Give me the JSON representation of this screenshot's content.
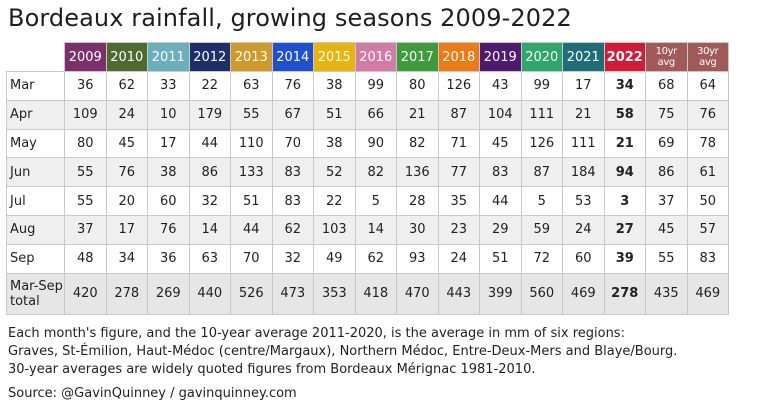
{
  "title": "Bordeaux rainfall, growing seasons 2009-2022",
  "chart_data": {
    "type": "table",
    "columns": [
      {
        "label": "2009",
        "color": "#7b2f6b"
      },
      {
        "label": "2010",
        "color": "#4d6b2e"
      },
      {
        "label": "2011",
        "color": "#6ab0ba"
      },
      {
        "label": "2012",
        "color": "#1d2f6b"
      },
      {
        "label": "2013",
        "color": "#d09a2a"
      },
      {
        "label": "2014",
        "color": "#1d4fd0"
      },
      {
        "label": "2015",
        "color": "#e8b30d"
      },
      {
        "label": "2016",
        "color": "#d37aa5"
      },
      {
        "label": "2017",
        "color": "#3e9b3a"
      },
      {
        "label": "2018",
        "color": "#ee7a12"
      },
      {
        "label": "2019",
        "color": "#4e1a70"
      },
      {
        "label": "2020",
        "color": "#2fa66a"
      },
      {
        "label": "2021",
        "color": "#1e6e7a"
      },
      {
        "label": "2022",
        "color": "#d41b35"
      },
      {
        "label": "10yr avg",
        "color": "#a25a58"
      },
      {
        "label": "30yr avg",
        "color": "#a25a58"
      }
    ],
    "highlight_column": "2022",
    "rows": [
      {
        "label": "Mar",
        "values": [
          "36",
          "62",
          "33",
          "22",
          "63",
          "76",
          "38",
          "99",
          "80",
          "126",
          "43",
          "99",
          "17",
          "34",
          "68",
          "64"
        ]
      },
      {
        "label": "Apr",
        "values": [
          "109",
          "24",
          "10",
          "179",
          "55",
          "67",
          "51",
          "66",
          "21",
          "87",
          "104",
          "111",
          "21",
          "58",
          "75",
          "76"
        ]
      },
      {
        "label": "May",
        "values": [
          "80",
          "45",
          "17",
          "44",
          "110",
          "70",
          "38",
          "90",
          "82",
          "71",
          "45",
          "126",
          "111",
          "21",
          "69",
          "78"
        ]
      },
      {
        "label": "Jun",
        "values": [
          "55",
          "76",
          "38",
          "86",
          "133",
          "83",
          "52",
          "82",
          "136",
          "77",
          "83",
          "87",
          "184",
          "94",
          "86",
          "61"
        ]
      },
      {
        "label": "Jul",
        "values": [
          "55",
          "20",
          "60",
          "32",
          "51",
          "83",
          "22",
          "5",
          "28",
          "35",
          "44",
          "5",
          "53",
          "3",
          "37",
          "50"
        ]
      },
      {
        "label": "Aug",
        "values": [
          "37",
          "17",
          "76",
          "14",
          "44",
          "62",
          "103",
          "14",
          "30",
          "23",
          "29",
          "59",
          "24",
          "27",
          "45",
          "57"
        ]
      },
      {
        "label": "Sep",
        "values": [
          "48",
          "34",
          "36",
          "63",
          "70",
          "32",
          "49",
          "62",
          "93",
          "24",
          "51",
          "72",
          "60",
          "39",
          "55",
          "83"
        ]
      },
      {
        "label": "Mar-Sep total",
        "values": [
          "420",
          "278",
          "269",
          "440",
          "526",
          "473",
          "353",
          "418",
          "470",
          "443",
          "399",
          "560",
          "469",
          "278",
          "435",
          "469"
        ]
      }
    ]
  },
  "notes": {
    "line1": "Each month's figure, and the 10-year average 2011-2020, is the average in mm of six regions:",
    "line2": "Graves, St-Émilion, Haut-Médoc (centre/Margaux), Northern Médoc, Entre-Deux-Mers and Blaye/Bourg.",
    "line3": "30-year averages are widely quoted figures from Bordeaux Mérignac 1981-2010."
  },
  "source": "Source: @GavinQuinney / gavinquinney.com"
}
